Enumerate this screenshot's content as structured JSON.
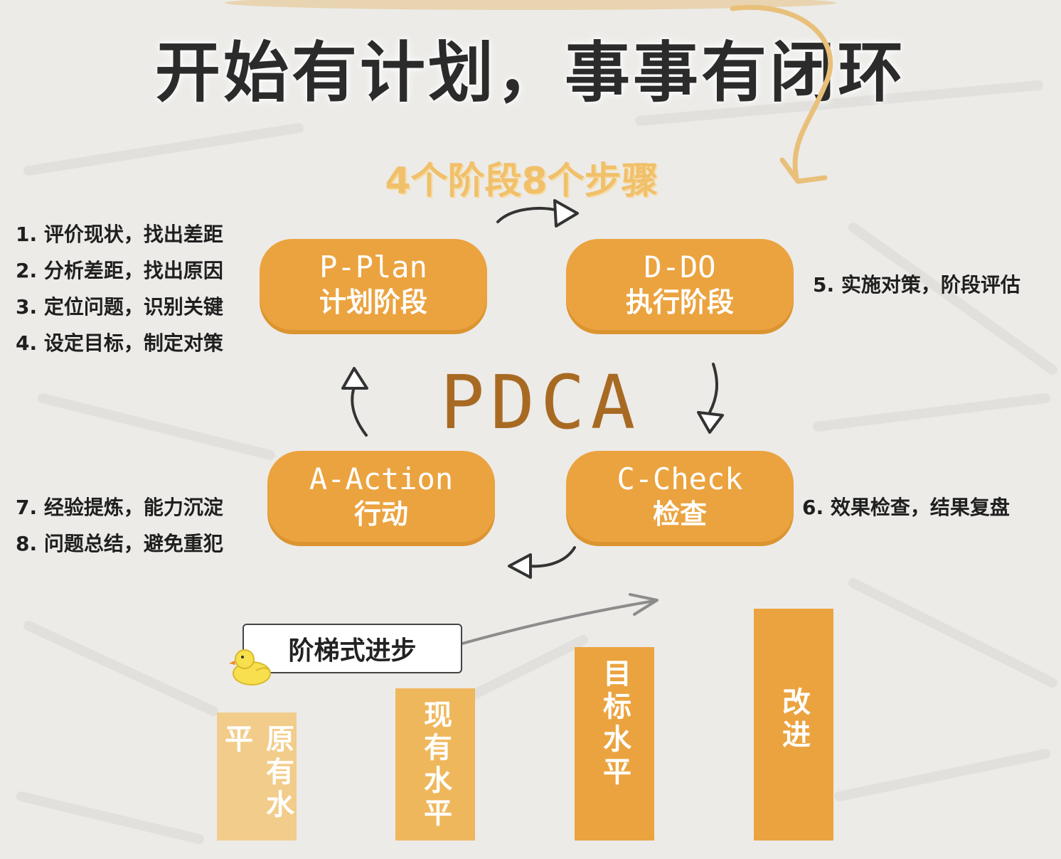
{
  "title": "开始有计划，事事有闭环",
  "subtitle": "4个阶段8个步骤",
  "center_label": "PDCA",
  "phases": {
    "plan": {
      "code": "P-Plan",
      "zh": "计划阶段"
    },
    "do": {
      "code": "D-DO",
      "zh": "执行阶段"
    },
    "check": {
      "code": "C-Check",
      "zh": "检查"
    },
    "action": {
      "code": "A-Action",
      "zh": "行动"
    }
  },
  "plan_steps": [
    "1. 评价现状，找出差距",
    "2. 分析差距，找出原因",
    "3. 定位问题，识别关键",
    "4. 设定目标，制定对策"
  ],
  "do_steps": [
    "5. 实施对策，阶段评估"
  ],
  "check_steps": [
    "6. 效果检查，结果复盘"
  ],
  "action_steps": [
    "7. 经验提炼，能力沉淀",
    "8. 问题总结，避免重犯"
  ],
  "ladder": {
    "label": "阶梯式进步",
    "levels": [
      "原有水平",
      "现有水平",
      "目标水平",
      "改进"
    ]
  },
  "colors": {
    "phase": "#eba33f",
    "bar_light": "#f2cc8a",
    "bar": "#eba33f",
    "subtitle": "#f1c06a",
    "pdca": "#a86a23",
    "title": "#2b2b2b"
  },
  "icons": [
    "arrow-icon",
    "duck-icon"
  ]
}
